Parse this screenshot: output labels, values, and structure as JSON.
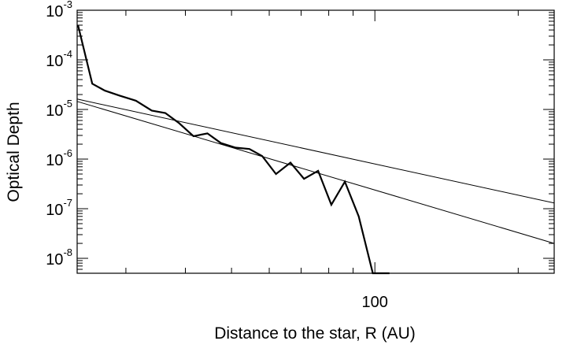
{
  "chart_data": {
    "type": "line",
    "xlabel": "Distance to the star, R (AU)",
    "ylabel": "Optical Depth",
    "x_scale": "log",
    "y_scale": "log",
    "xlim": [
      23.7,
      238
    ],
    "ylim": [
      5e-09,
      0.001
    ],
    "grid": false,
    "x_tick_labels": [
      {
        "value": 100,
        "label": "100"
      }
    ],
    "x_minor_ticks": [
      30,
      40,
      50,
      60,
      70,
      80,
      90,
      200
    ],
    "y_ticks": [
      {
        "value": 1e-08,
        "base": "10",
        "exp": "-8"
      },
      {
        "value": 1e-07,
        "base": "10",
        "exp": "-7"
      },
      {
        "value": 1e-06,
        "base": "10",
        "exp": "-6"
      },
      {
        "value": 1e-05,
        "base": "10",
        "exp": "-5"
      },
      {
        "value": 0.0001,
        "base": "10",
        "exp": "-4"
      },
      {
        "value": 0.001,
        "base": "10",
        "exp": "-3"
      }
    ],
    "series": [
      {
        "style": "thick",
        "x": [
          23.8,
          25.5,
          27.1,
          29.1,
          31.5,
          34.0,
          36.3,
          38.8,
          41.6,
          44.5,
          47.5,
          51.0,
          54.5,
          58.0,
          62.0,
          66.5,
          71.0,
          76.0,
          81.0,
          86.5,
          92.5,
          99.0,
          105.5,
          107.0,
          107.3
        ],
        "y": [
          0.0005,
          3.3e-05,
          2.4e-05,
          1.9e-05,
          1.5e-05,
          9.5e-06,
          8.5e-06,
          5.3e-06,
          2.9e-06,
          3.3e-06,
          2.1e-06,
          1.7e-06,
          1.6e-06,
          1.15e-06,
          5e-07,
          8.5e-07,
          4e-07,
          5.8e-07,
          1.2e-07,
          3.5e-07,
          7e-08,
          5e-09,
          5e-09,
          5e-09,
          5e-09
        ]
      },
      {
        "style": "thin",
        "x": [
          23.7,
          238
        ],
        "y": [
          1.62e-05,
          1.3e-07
        ]
      },
      {
        "style": "thin",
        "x": [
          23.7,
          238
        ],
        "y": [
          1.45e-05,
          2e-08
        ]
      }
    ]
  }
}
